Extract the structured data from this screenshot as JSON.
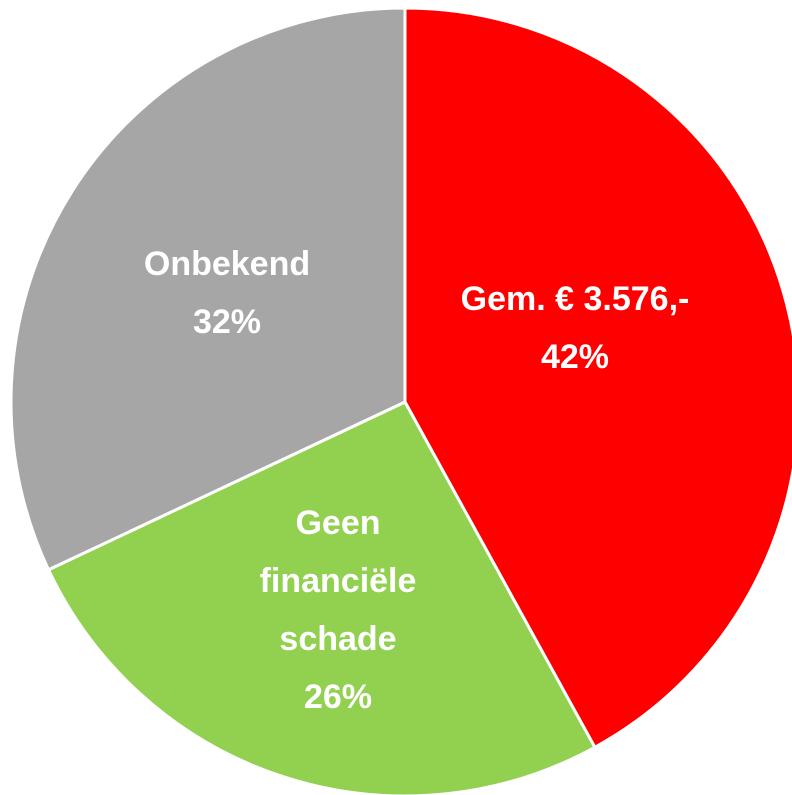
{
  "chart_data": {
    "type": "pie",
    "categories": [
      "Gem. € 3.576,-",
      "Geen financiële schade",
      "Onbekend"
    ],
    "values": [
      42,
      26,
      32
    ],
    "value_labels": [
      "42%",
      "26%",
      "32%"
    ],
    "colors": [
      "#ff0000",
      "#92d050",
      "#a6a6a6"
    ]
  }
}
